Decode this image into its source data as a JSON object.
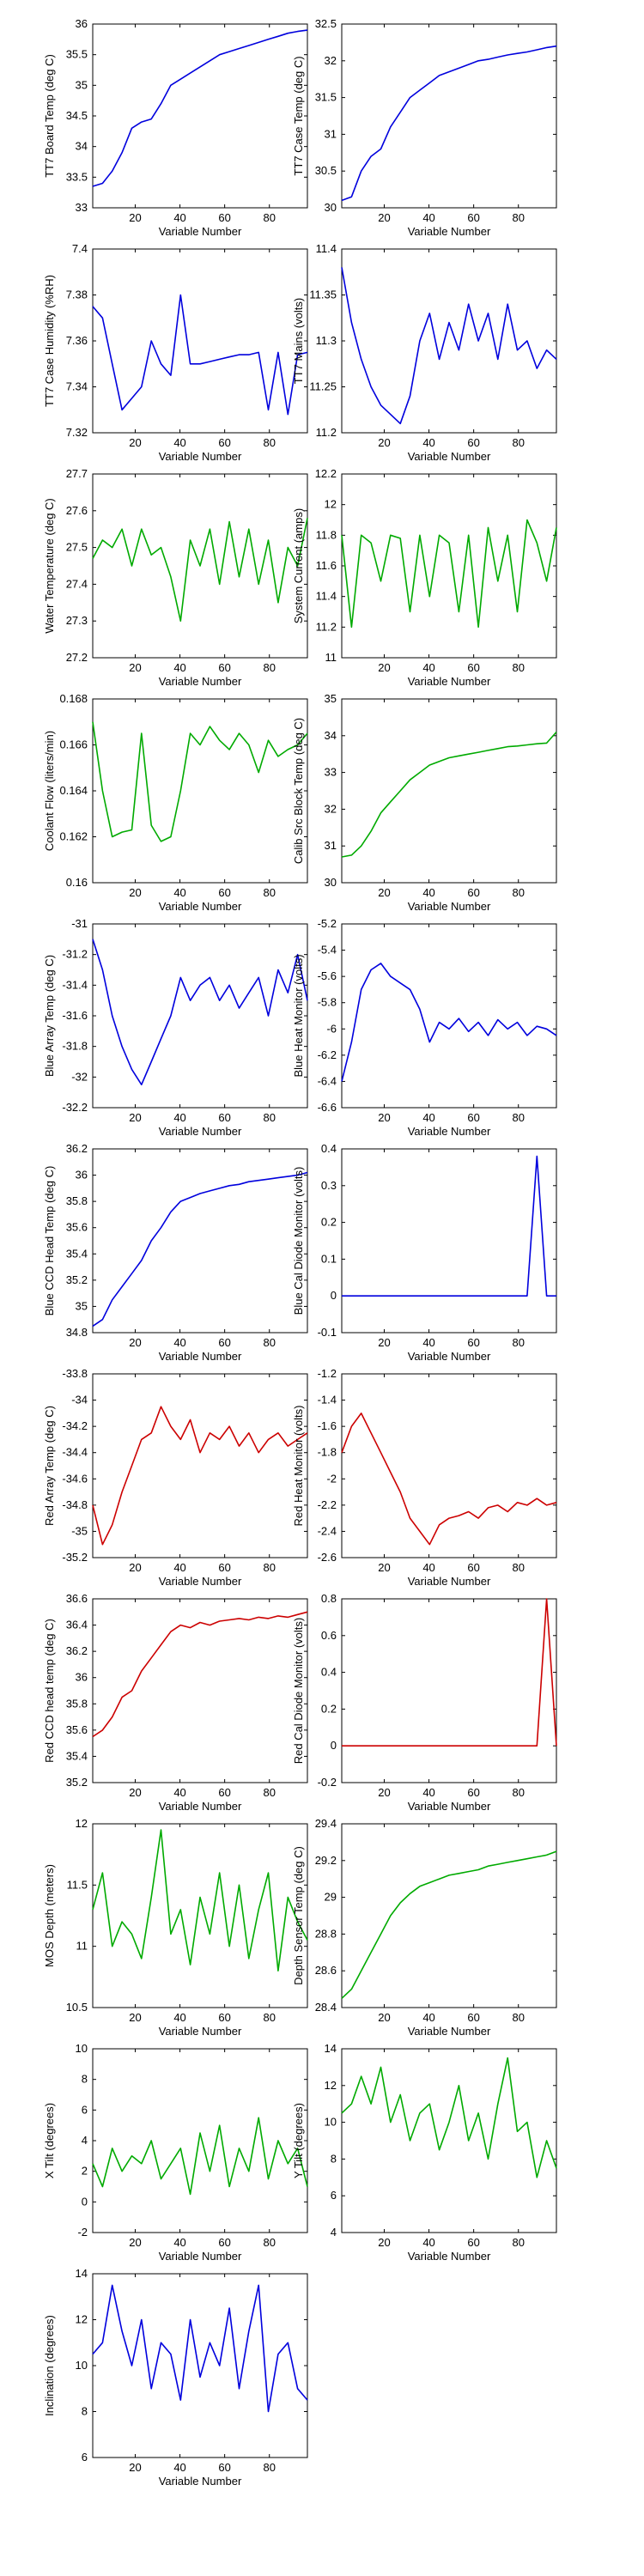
{
  "figure": {
    "xlabel_common": "Variable Number"
  },
  "chart_data": [
    {
      "type": "line",
      "ylabel": "TT7 Board Temp (deg C)",
      "xlabel": "Variable Number",
      "xlim": [
        1,
        97
      ],
      "ylim": [
        33,
        36
      ],
      "xticks": [
        "20",
        "40",
        "60",
        "80"
      ],
      "yticks": [
        "33",
        "33.5",
        "34",
        "34.5",
        "35",
        "35.5",
        "36"
      ],
      "color": "#0000dd",
      "series": [
        {
          "values": [
            33.35,
            33.4,
            33.6,
            33.9,
            34.3,
            34.4,
            34.45,
            34.7,
            35.0,
            35.1,
            35.2,
            35.3,
            35.4,
            35.5,
            35.55,
            35.6,
            35.65,
            35.7,
            35.75,
            35.8,
            35.85,
            35.88,
            35.9
          ]
        }
      ]
    },
    {
      "type": "line",
      "ylabel": "TT7 Case Temp (deg C)",
      "xlabel": "Variable Number",
      "xlim": [
        1,
        97
      ],
      "ylim": [
        30,
        32.5
      ],
      "xticks": [
        "20",
        "40",
        "60",
        "80"
      ],
      "yticks": [
        "30",
        "30.5",
        "31",
        "31.5",
        "32",
        "32.5"
      ],
      "color": "#0000dd",
      "series": [
        {
          "values": [
            30.1,
            30.15,
            30.5,
            30.7,
            30.8,
            31.1,
            31.3,
            31.5,
            31.6,
            31.7,
            31.8,
            31.85,
            31.9,
            31.95,
            32.0,
            32.02,
            32.05,
            32.08,
            32.1,
            32.12,
            32.15,
            32.18,
            32.2
          ]
        }
      ]
    },
    {
      "type": "line",
      "ylabel": "TT7 Case Humidity (%RH)",
      "xlabel": "Variable Number",
      "xlim": [
        1,
        97
      ],
      "ylim": [
        7.32,
        7.4
      ],
      "xticks": [
        "20",
        "40",
        "60",
        "80"
      ],
      "yticks": [
        "7.32",
        "7.34",
        "7.36",
        "7.38",
        "7.4"
      ],
      "color": "#0000dd",
      "series": [
        {
          "values": [
            7.375,
            7.37,
            7.35,
            7.33,
            7.335,
            7.34,
            7.36,
            7.35,
            7.345,
            7.38,
            7.35,
            7.35,
            7.351,
            7.352,
            7.353,
            7.354,
            7.354,
            7.355,
            7.33,
            7.355,
            7.328,
            7.354,
            7.355
          ]
        }
      ]
    },
    {
      "type": "line",
      "ylabel": "TT7 Mains (volts)",
      "xlabel": "Variable Number",
      "xlim": [
        1,
        97
      ],
      "ylim": [
        11.2,
        11.4
      ],
      "xticks": [
        "20",
        "40",
        "60",
        "80"
      ],
      "yticks": [
        "11.2",
        "11.25",
        "11.3",
        "11.35",
        "11.4"
      ],
      "color": "#0000dd",
      "series": [
        {
          "values": [
            11.38,
            11.32,
            11.28,
            11.25,
            11.23,
            11.22,
            11.21,
            11.24,
            11.3,
            11.33,
            11.28,
            11.32,
            11.29,
            11.34,
            11.3,
            11.33,
            11.28,
            11.34,
            11.29,
            11.3,
            11.27,
            11.29,
            11.28
          ]
        }
      ]
    },
    {
      "type": "line",
      "ylabel": "Water Temperature (deg C)",
      "xlabel": "Variable Number",
      "xlim": [
        1,
        97
      ],
      "ylim": [
        27.2,
        27.7
      ],
      "xticks": [
        "20",
        "40",
        "60",
        "80"
      ],
      "yticks": [
        "27.2",
        "27.3",
        "27.4",
        "27.5",
        "27.6",
        "27.7"
      ],
      "color": "#00aa00",
      "series": [
        {
          "values": [
            27.47,
            27.52,
            27.5,
            27.55,
            27.45,
            27.55,
            27.48,
            27.5,
            27.42,
            27.3,
            27.52,
            27.45,
            27.55,
            27.4,
            27.57,
            27.42,
            27.55,
            27.4,
            27.52,
            27.35,
            27.5,
            27.45,
            27.58
          ]
        }
      ]
    },
    {
      "type": "line",
      "ylabel": "System Current (amps)",
      "xlabel": "Variable Number",
      "xlim": [
        1,
        97
      ],
      "ylim": [
        11,
        12.2
      ],
      "xticks": [
        "20",
        "40",
        "60",
        "80"
      ],
      "yticks": [
        "11",
        "11.2",
        "11.4",
        "11.6",
        "11.8",
        "12",
        "12.2"
      ],
      "color": "#00aa00",
      "series": [
        {
          "values": [
            11.8,
            11.2,
            11.8,
            11.75,
            11.5,
            11.8,
            11.78,
            11.3,
            11.8,
            11.4,
            11.8,
            11.75,
            11.3,
            11.8,
            11.2,
            11.85,
            11.5,
            11.8,
            11.3,
            11.9,
            11.75,
            11.5,
            11.85
          ]
        }
      ]
    },
    {
      "type": "line",
      "ylabel": "Coolant Flow (liters/min)",
      "xlabel": "Variable Number",
      "xlim": [
        1,
        97
      ],
      "ylim": [
        0.16,
        0.168
      ],
      "xticks": [
        "20",
        "40",
        "60",
        "80"
      ],
      "yticks": [
        "0.16",
        "0.162",
        "0.164",
        "0.166",
        "0.168"
      ],
      "color": "#00aa00",
      "series": [
        {
          "values": [
            0.167,
            0.164,
            0.162,
            0.1622,
            0.1623,
            0.1665,
            0.1625,
            0.1618,
            0.162,
            0.164,
            0.1665,
            0.166,
            0.1668,
            0.1662,
            0.1658,
            0.1665,
            0.166,
            0.1648,
            0.1662,
            0.1655,
            0.1658,
            0.166,
            0.1665
          ]
        }
      ]
    },
    {
      "type": "line",
      "ylabel": "Calib Src Block Temp (deg C)",
      "xlabel": "Variable Number",
      "xlim": [
        1,
        97
      ],
      "ylim": [
        30,
        35
      ],
      "xticks": [
        "20",
        "40",
        "60",
        "80"
      ],
      "yticks": [
        "30",
        "31",
        "32",
        "33",
        "34",
        "35"
      ],
      "color": "#00aa00",
      "series": [
        {
          "values": [
            30.7,
            30.75,
            31.0,
            31.4,
            31.9,
            32.2,
            32.5,
            32.8,
            33.0,
            33.2,
            33.3,
            33.4,
            33.45,
            33.5,
            33.55,
            33.6,
            33.65,
            33.7,
            33.72,
            33.75,
            33.78,
            33.8,
            34.1
          ]
        }
      ]
    },
    {
      "type": "line",
      "ylabel": "Blue Array Temp (deg C)",
      "xlabel": "Variable Number",
      "xlim": [
        1,
        97
      ],
      "ylim": [
        -32.2,
        -31
      ],
      "xticks": [
        "20",
        "40",
        "60",
        "80"
      ],
      "yticks": [
        "-32.2",
        "-32",
        "-31.8",
        "-31.6",
        "-31.4",
        "-31.2",
        "-31"
      ],
      "color": "#0000dd",
      "series": [
        {
          "values": [
            -31.1,
            -31.3,
            -31.6,
            -31.8,
            -31.95,
            -32.05,
            -31.9,
            -31.75,
            -31.6,
            -31.35,
            -31.5,
            -31.4,
            -31.35,
            -31.5,
            -31.4,
            -31.55,
            -31.45,
            -31.35,
            -31.6,
            -31.3,
            -31.45,
            -31.2,
            -31.5
          ]
        }
      ]
    },
    {
      "type": "line",
      "ylabel": "Blue Heat Monitor (volts)",
      "xlabel": "Variable Number",
      "xlim": [
        1,
        97
      ],
      "ylim": [
        -6.6,
        -5.2
      ],
      "xticks": [
        "20",
        "40",
        "60",
        "80"
      ],
      "yticks": [
        "-6.6",
        "-6.4",
        "-6.2",
        "-6",
        "-5.8",
        "-5.6",
        "-5.4",
        "-5.2"
      ],
      "color": "#0000dd",
      "series": [
        {
          "values": [
            -6.4,
            -6.1,
            -5.7,
            -5.55,
            -5.5,
            -5.6,
            -5.65,
            -5.7,
            -5.85,
            -6.1,
            -5.95,
            -6.0,
            -5.92,
            -6.02,
            -5.95,
            -6.05,
            -5.93,
            -6.0,
            -5.95,
            -6.05,
            -5.98,
            -6.0,
            -6.05
          ]
        }
      ]
    },
    {
      "type": "line",
      "ylabel": "Blue CCD Head Temp (deg C)",
      "xlabel": "Variable Number",
      "xlim": [
        1,
        97
      ],
      "ylim": [
        34.8,
        36.2
      ],
      "xticks": [
        "20",
        "40",
        "60",
        "80"
      ],
      "yticks": [
        "34.8",
        "35",
        "35.2",
        "35.4",
        "35.6",
        "35.8",
        "36",
        "36.2"
      ],
      "color": "#0000dd",
      "series": [
        {
          "values": [
            34.85,
            34.9,
            35.05,
            35.15,
            35.25,
            35.35,
            35.5,
            35.6,
            35.72,
            35.8,
            35.83,
            35.86,
            35.88,
            35.9,
            35.92,
            35.93,
            35.95,
            35.96,
            35.97,
            35.98,
            35.99,
            36.0,
            36.02
          ]
        }
      ]
    },
    {
      "type": "line",
      "ylabel": "Blue Cal Diode Monitor (volts)",
      "xlabel": "Variable Number",
      "xlim": [
        1,
        97
      ],
      "ylim": [
        -0.1,
        0.4
      ],
      "xticks": [
        "20",
        "40",
        "60",
        "80"
      ],
      "yticks": [
        "-0.1",
        "0",
        "0.1",
        "0.2",
        "0.3",
        "0.4"
      ],
      "color": "#0000dd",
      "series": [
        {
          "values": [
            0,
            0,
            0,
            0,
            0,
            0,
            0,
            0,
            0,
            0,
            0,
            0,
            0,
            0,
            0,
            0,
            0,
            0,
            0,
            0,
            0.38,
            0,
            0
          ]
        }
      ]
    },
    {
      "type": "line",
      "ylabel": "Red Array Temp (deg C)",
      "xlabel": "Variable Number",
      "xlim": [
        1,
        97
      ],
      "ylim": [
        -35.2,
        -33.8
      ],
      "xticks": [
        "20",
        "40",
        "60",
        "80"
      ],
      "yticks": [
        "-35.2",
        "-35",
        "-34.8",
        "-34.6",
        "-34.4",
        "-34.2",
        "-34",
        "-33.8"
      ],
      "color": "#cc0000",
      "series": [
        {
          "values": [
            -34.8,
            -35.1,
            -34.95,
            -34.7,
            -34.5,
            -34.3,
            -34.25,
            -34.05,
            -34.2,
            -34.3,
            -34.15,
            -34.4,
            -34.25,
            -34.3,
            -34.2,
            -34.35,
            -34.25,
            -34.4,
            -34.3,
            -34.25,
            -34.35,
            -34.3,
            -34.25
          ]
        }
      ]
    },
    {
      "type": "line",
      "ylabel": "Red Heat Monitor (volts)",
      "xlabel": "Variable Number",
      "xlim": [
        1,
        97
      ],
      "ylim": [
        -2.6,
        -1.2
      ],
      "xticks": [
        "20",
        "40",
        "60",
        "80"
      ],
      "yticks": [
        "-2.6",
        "-2.4",
        "-2.2",
        "-2",
        "-1.8",
        "-1.6",
        "-1.4",
        "-1.2"
      ],
      "color": "#cc0000",
      "series": [
        {
          "values": [
            -1.8,
            -1.6,
            -1.5,
            -1.65,
            -1.8,
            -1.95,
            -2.1,
            -2.3,
            -2.4,
            -2.5,
            -2.35,
            -2.3,
            -2.28,
            -2.25,
            -2.3,
            -2.22,
            -2.2,
            -2.25,
            -2.18,
            -2.2,
            -2.15,
            -2.2,
            -2.18
          ]
        }
      ]
    },
    {
      "type": "line",
      "ylabel": "Red CCD head temp (deg C)",
      "xlabel": "Variable Number",
      "xlim": [
        1,
        97
      ],
      "ylim": [
        35.2,
        36.6
      ],
      "xticks": [
        "20",
        "40",
        "60",
        "80"
      ],
      "yticks": [
        "35.2",
        "35.4",
        "35.6",
        "35.8",
        "36",
        "36.2",
        "36.4",
        "36.6"
      ],
      "color": "#cc0000",
      "series": [
        {
          "values": [
            35.55,
            35.6,
            35.7,
            35.85,
            35.9,
            36.05,
            36.15,
            36.25,
            36.35,
            36.4,
            36.38,
            36.42,
            36.4,
            36.43,
            36.44,
            36.45,
            36.44,
            36.46,
            36.45,
            36.47,
            36.46,
            36.48,
            36.5
          ]
        }
      ]
    },
    {
      "type": "line",
      "ylabel": "Red Cal Diode Monitor (volts)",
      "xlabel": "Variable Number",
      "xlim": [
        1,
        97
      ],
      "ylim": [
        -0.2,
        0.8
      ],
      "xticks": [
        "20",
        "40",
        "60",
        "80"
      ],
      "yticks": [
        "-0.2",
        "0",
        "0.2",
        "0.4",
        "0.6",
        "0.8"
      ],
      "color": "#cc0000",
      "series": [
        {
          "values": [
            0,
            0,
            0,
            0,
            0,
            0,
            0,
            0,
            0,
            0,
            0,
            0,
            0,
            0,
            0,
            0,
            0,
            0,
            0,
            0,
            0,
            0.8,
            0
          ]
        }
      ]
    },
    {
      "type": "line",
      "ylabel": "MOS Depth  (meters)",
      "xlabel": "Variable Number",
      "xlim": [
        1,
        97
      ],
      "ylim": [
        10.5,
        12
      ],
      "xticks": [
        "20",
        "40",
        "60",
        "80"
      ],
      "yticks": [
        "10.5",
        "11",
        "11.5",
        "12"
      ],
      "color": "#00aa00",
      "series": [
        {
          "values": [
            11.3,
            11.6,
            11.0,
            11.2,
            11.1,
            10.9,
            11.4,
            11.95,
            11.1,
            11.3,
            10.85,
            11.4,
            11.1,
            11.6,
            11.0,
            11.5,
            10.9,
            11.3,
            11.6,
            10.8,
            11.4,
            11.2,
            11.05
          ]
        }
      ]
    },
    {
      "type": "line",
      "ylabel": "Depth Sensor Temp (deg C)",
      "xlabel": "Variable Number",
      "xlim": [
        1,
        97
      ],
      "ylim": [
        28.4,
        29.4
      ],
      "xticks": [
        "20",
        "40",
        "60",
        "80"
      ],
      "yticks": [
        "28.4",
        "28.6",
        "28.8",
        "29",
        "29.2",
        "29.4"
      ],
      "color": "#00aa00",
      "series": [
        {
          "values": [
            28.45,
            28.5,
            28.6,
            28.7,
            28.8,
            28.9,
            28.97,
            29.02,
            29.06,
            29.08,
            29.1,
            29.12,
            29.13,
            29.14,
            29.15,
            29.17,
            29.18,
            29.19,
            29.2,
            29.21,
            29.22,
            29.23,
            29.25
          ]
        }
      ]
    },
    {
      "type": "line",
      "ylabel": "X Tilt  (degrees)",
      "xlabel": "Variable Number",
      "xlim": [
        1,
        97
      ],
      "ylim": [
        -2,
        10
      ],
      "xticks": [
        "20",
        "40",
        "60",
        "80"
      ],
      "yticks": [
        "-2",
        "0",
        "2",
        "4",
        "6",
        "8",
        "10"
      ],
      "color": "#00aa00",
      "series": [
        {
          "values": [
            2.5,
            1.0,
            3.5,
            2.0,
            3.0,
            2.5,
            4.0,
            1.5,
            2.5,
            3.5,
            0.5,
            4.5,
            2.0,
            5.0,
            1.0,
            3.5,
            2.0,
            5.5,
            1.5,
            4.0,
            2.5,
            3.5,
            1.0
          ]
        }
      ]
    },
    {
      "type": "line",
      "ylabel": "Y Tilt  (degrees)",
      "xlabel": "Variable Number",
      "xlim": [
        1,
        97
      ],
      "ylim": [
        4,
        14
      ],
      "xticks": [
        "20",
        "40",
        "60",
        "80"
      ],
      "yticks": [
        "4",
        "6",
        "8",
        "10",
        "12",
        "14"
      ],
      "color": "#00aa00",
      "series": [
        {
          "values": [
            10.5,
            11.0,
            12.5,
            11.0,
            13.0,
            10.0,
            11.5,
            9.0,
            10.5,
            11.0,
            8.5,
            10.0,
            12.0,
            9.0,
            10.5,
            8.0,
            11.0,
            13.5,
            9.5,
            10.0,
            7.0,
            9.0,
            7.5
          ]
        }
      ]
    },
    {
      "type": "line",
      "ylabel": "Inclination  (degrees)",
      "xlabel": "Variable Number",
      "xlim": [
        1,
        97
      ],
      "ylim": [
        6,
        14
      ],
      "xticks": [
        "20",
        "40",
        "60",
        "80"
      ],
      "yticks": [
        "6",
        "8",
        "10",
        "12",
        "14"
      ],
      "color": "#0000dd",
      "series": [
        {
          "values": [
            10.5,
            11.0,
            13.5,
            11.5,
            10.0,
            12.0,
            9.0,
            11.0,
            10.5,
            8.5,
            12.0,
            9.5,
            11.0,
            10.0,
            12.5,
            9.0,
            11.5,
            13.5,
            8.0,
            10.5,
            11.0,
            9.0,
            8.5
          ]
        }
      ]
    }
  ]
}
